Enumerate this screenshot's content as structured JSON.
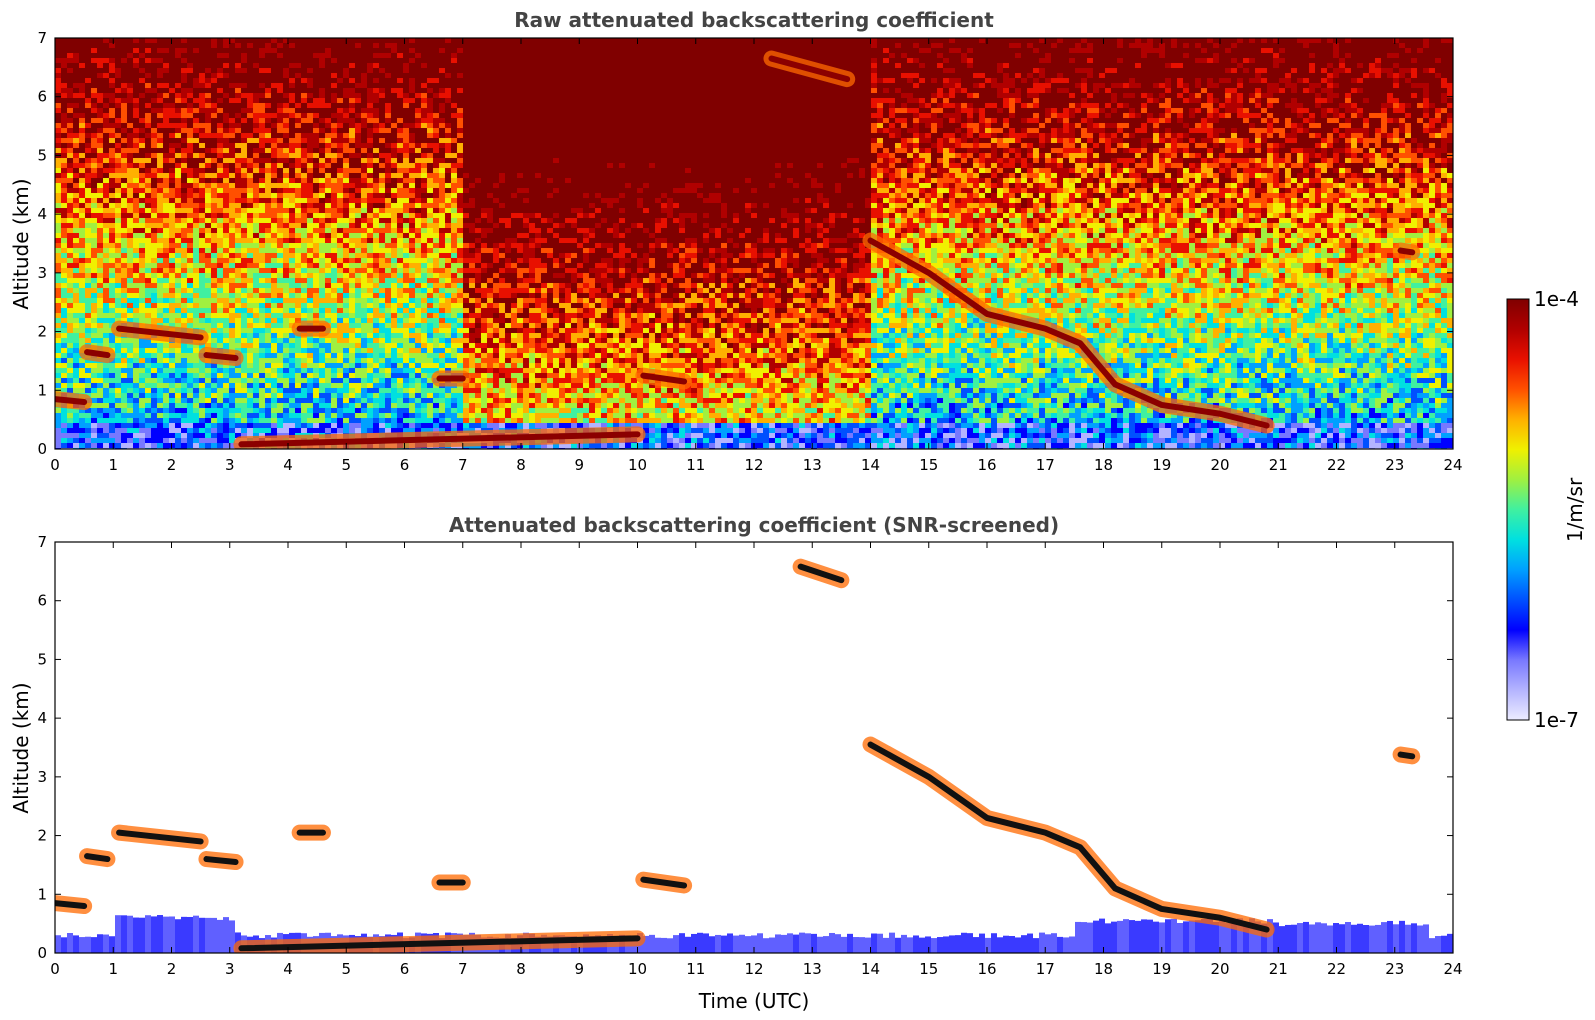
{
  "chart_data": [
    {
      "type": "heatmap",
      "title": "Raw attenuated backscattering coefficient",
      "xlabel": "",
      "ylabel": "Altitude (km)",
      "xlim": [
        0,
        24
      ],
      "ylim": [
        0,
        7
      ],
      "x_ticks": [
        0,
        1,
        2,
        3,
        4,
        5,
        6,
        7,
        8,
        9,
        10,
        11,
        12,
        13,
        14,
        15,
        16,
        17,
        18,
        19,
        20,
        21,
        22,
        23,
        24
      ],
      "y_ticks": [
        0,
        1,
        2,
        3,
        4,
        5,
        6,
        7
      ],
      "colormap": "jet",
      "screened": false,
      "layers": [
        {
          "x": [
            0.0,
            0.5
          ],
          "y": [
            0.85,
            0.8
          ]
        },
        {
          "x": [
            0.55,
            0.9
          ],
          "y": [
            1.65,
            1.6
          ]
        },
        {
          "x": [
            1.1,
            2.5
          ],
          "y": [
            2.05,
            1.9
          ]
        },
        {
          "x": [
            2.6,
            3.1
          ],
          "y": [
            1.6,
            1.55
          ]
        },
        {
          "x": [
            4.2,
            4.6
          ],
          "y": [
            2.05,
            2.05
          ]
        },
        {
          "x": [
            6.6,
            7.0
          ],
          "y": [
            1.2,
            1.2
          ]
        },
        {
          "x": [
            10.1,
            10.8
          ],
          "y": [
            1.25,
            1.15
          ]
        },
        {
          "x": [
            3.2,
            10.0
          ],
          "y": [
            0.08,
            0.25
          ]
        },
        {
          "x": [
            14.0,
            15.0,
            16.0,
            17.0,
            17.6,
            18.2,
            19.0,
            20.0,
            20.8
          ],
          "y": [
            3.55,
            3.0,
            2.3,
            2.05,
            1.8,
            1.1,
            0.75,
            0.6,
            0.4
          ]
        },
        {
          "x": [
            23.1,
            23.3
          ],
          "y": [
            3.38,
            3.35
          ]
        },
        {
          "x": [
            12.3,
            13.6
          ],
          "y": [
            6.65,
            6.3
          ]
        }
      ]
    },
    {
      "type": "heatmap",
      "title": "Attenuated backscattering coefficient (SNR-screened)",
      "xlabel": "Time (UTC)",
      "ylabel": "Altitude (km)",
      "xlim": [
        0,
        24
      ],
      "ylim": [
        0,
        7
      ],
      "x_ticks": [
        0,
        1,
        2,
        3,
        4,
        5,
        6,
        7,
        8,
        9,
        10,
        11,
        12,
        13,
        14,
        15,
        16,
        17,
        18,
        19,
        20,
        21,
        22,
        23,
        24
      ],
      "y_ticks": [
        0,
        1,
        2,
        3,
        4,
        5,
        6,
        7
      ],
      "colormap": "jet",
      "screened": true,
      "layers": [
        {
          "x": [
            0.0,
            0.5
          ],
          "y": [
            0.85,
            0.8
          ]
        },
        {
          "x": [
            0.55,
            0.9
          ],
          "y": [
            1.65,
            1.6
          ]
        },
        {
          "x": [
            1.1,
            2.5
          ],
          "y": [
            2.05,
            1.9
          ]
        },
        {
          "x": [
            2.6,
            3.1
          ],
          "y": [
            1.6,
            1.55
          ]
        },
        {
          "x": [
            4.2,
            4.6
          ],
          "y": [
            2.05,
            2.05
          ]
        },
        {
          "x": [
            6.6,
            7.0
          ],
          "y": [
            1.2,
            1.2
          ]
        },
        {
          "x": [
            10.1,
            10.8
          ],
          "y": [
            1.25,
            1.15
          ]
        },
        {
          "x": [
            3.2,
            10.0
          ],
          "y": [
            0.08,
            0.25
          ]
        },
        {
          "x": [
            14.0,
            15.0,
            16.0,
            17.0,
            17.6,
            18.2,
            19.0,
            20.0,
            20.8
          ],
          "y": [
            3.55,
            3.0,
            2.3,
            2.05,
            1.8,
            1.1,
            0.75,
            0.6,
            0.4
          ]
        },
        {
          "x": [
            23.1,
            23.3
          ],
          "y": [
            3.38,
            3.35
          ]
        },
        {
          "x": [
            12.8,
            13.5
          ],
          "y": [
            6.58,
            6.35
          ]
        }
      ]
    }
  ],
  "colorbar": {
    "label": "1/m/sr",
    "max_label": "1e-4",
    "min_label": "1e-7",
    "scale": "log",
    "colors": [
      "#ececff",
      "#b4b4ff",
      "#7878ff",
      "#0000ff",
      "#0050ff",
      "#00a0ff",
      "#00e0e0",
      "#40f0a0",
      "#a0f040",
      "#f0f000",
      "#ffb000",
      "#ff5000",
      "#e81000",
      "#b00000",
      "#800000"
    ]
  }
}
